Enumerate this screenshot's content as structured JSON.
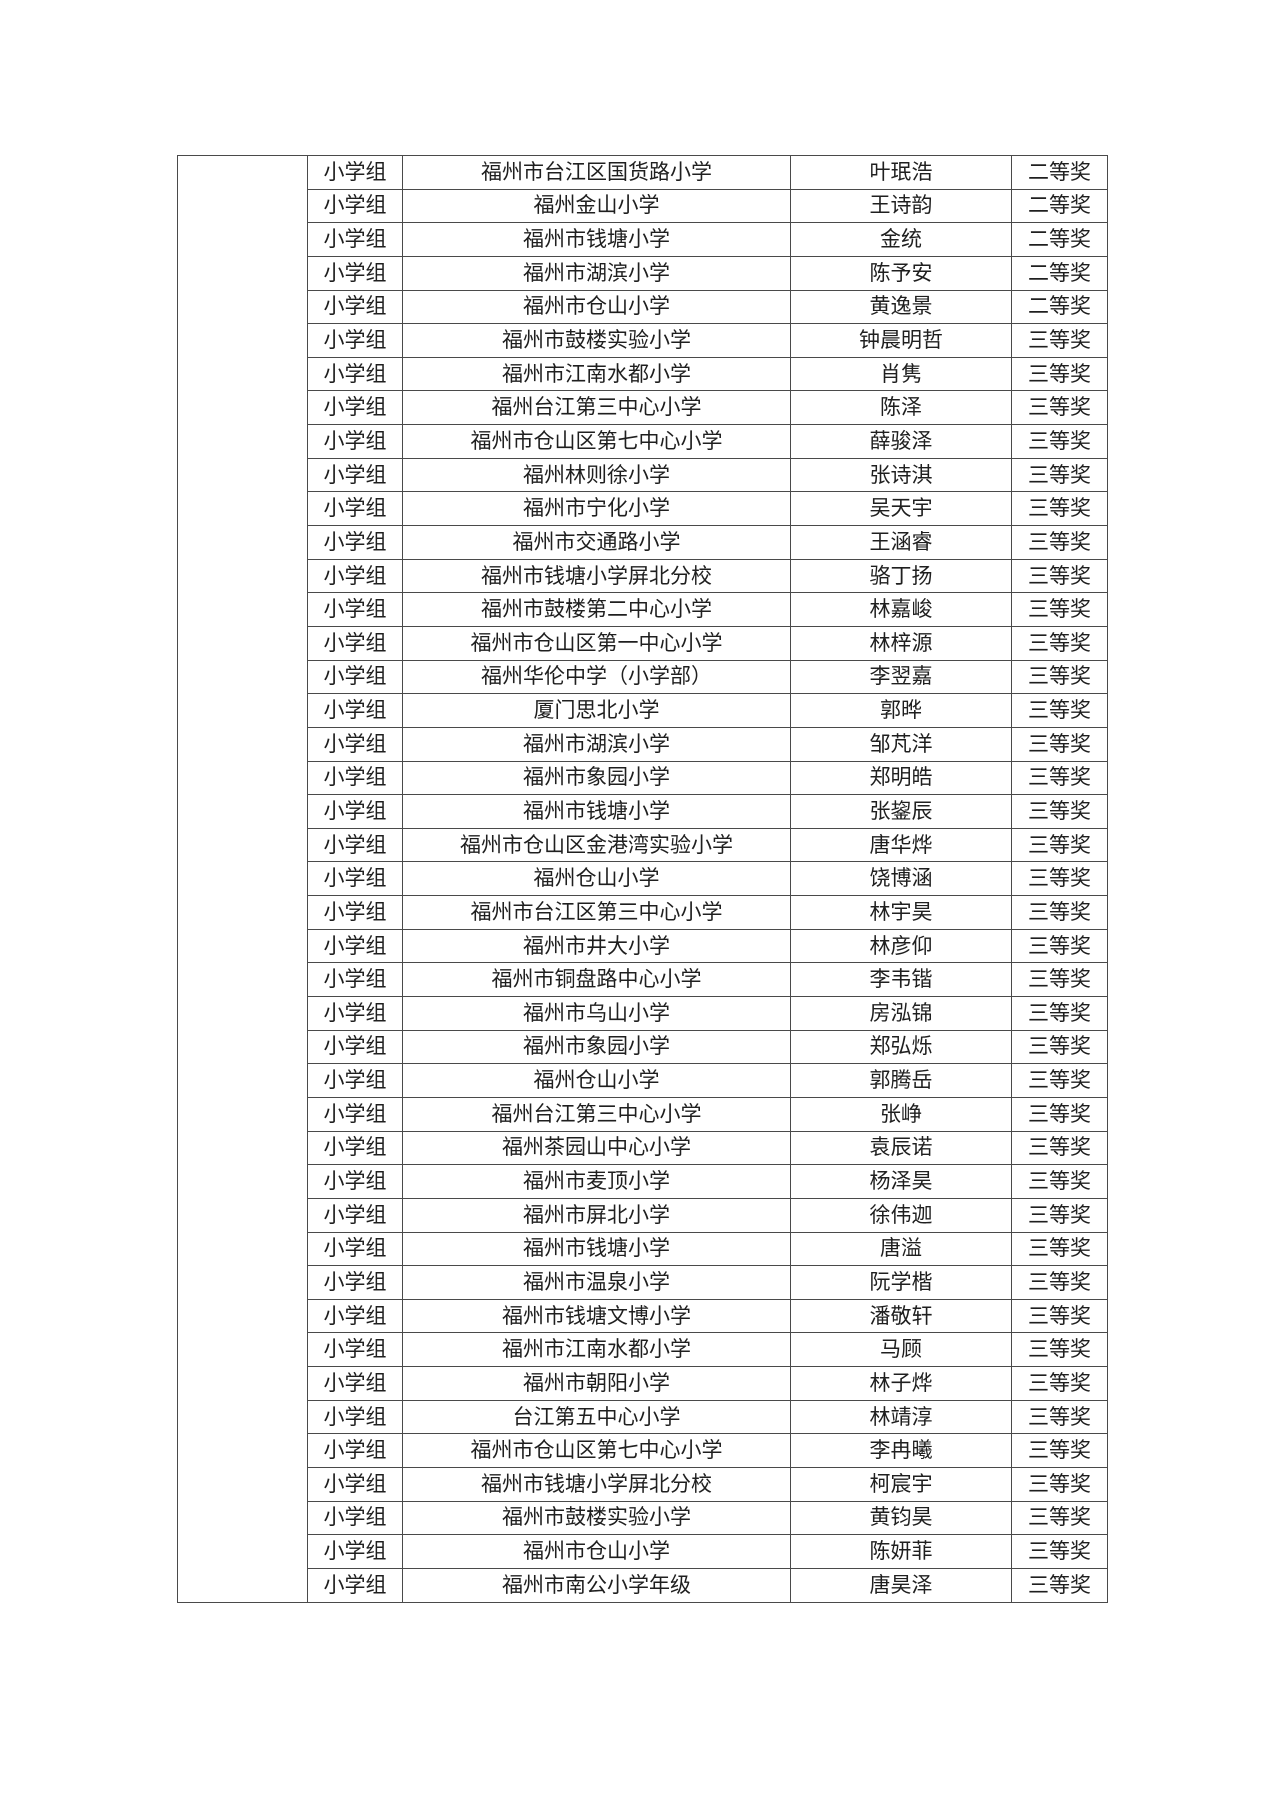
{
  "page": {
    "background_color": "#ffffff",
    "text_color": "#1f1f1f",
    "border_color": "#4a4a4a"
  },
  "table": {
    "merged_left_cell": "",
    "rows": [
      {
        "group": "小学组",
        "school": "福州市台江区国货路小学",
        "name": "叶珉浩",
        "award": "二等奖"
      },
      {
        "group": "小学组",
        "school": "福州金山小学",
        "name": "王诗韵",
        "award": "二等奖"
      },
      {
        "group": "小学组",
        "school": "福州市钱塘小学",
        "name": "金统",
        "award": "二等奖"
      },
      {
        "group": "小学组",
        "school": "福州市湖滨小学",
        "name": "陈予安",
        "award": "二等奖"
      },
      {
        "group": "小学组",
        "school": "福州市仓山小学",
        "name": "黄逸景",
        "award": "二等奖"
      },
      {
        "group": "小学组",
        "school": "福州市鼓楼实验小学",
        "name": "钟晨明哲",
        "award": "三等奖"
      },
      {
        "group": "小学组",
        "school": "福州市江南水都小学",
        "name": "肖隽",
        "award": "三等奖"
      },
      {
        "group": "小学组",
        "school": "福州台江第三中心小学",
        "name": "陈泽",
        "award": "三等奖"
      },
      {
        "group": "小学组",
        "school": "福州市仓山区第七中心小学",
        "name": "薛骏泽",
        "award": "三等奖"
      },
      {
        "group": "小学组",
        "school": "福州林则徐小学",
        "name": "张诗淇",
        "award": "三等奖"
      },
      {
        "group": "小学组",
        "school": "福州市宁化小学",
        "name": "吴天宇",
        "award": "三等奖"
      },
      {
        "group": "小学组",
        "school": "福州市交通路小学",
        "name": "王涵睿",
        "award": "三等奖"
      },
      {
        "group": "小学组",
        "school": "福州市钱塘小学屏北分校",
        "name": "骆丁扬",
        "award": "三等奖"
      },
      {
        "group": "小学组",
        "school": "福州市鼓楼第二中心小学",
        "name": "林嘉峻",
        "award": "三等奖"
      },
      {
        "group": "小学组",
        "school": "福州市仓山区第一中心小学",
        "name": "林梓源",
        "award": "三等奖"
      },
      {
        "group": "小学组",
        "school": "福州华伦中学（小学部）",
        "name": "李翌嘉",
        "award": "三等奖"
      },
      {
        "group": "小学组",
        "school": "厦门思北小学",
        "name": "郭晔",
        "award": "三等奖"
      },
      {
        "group": "小学组",
        "school": "福州市湖滨小学",
        "name": "邹芃洋",
        "award": "三等奖"
      },
      {
        "group": "小学组",
        "school": "福州市象园小学",
        "name": "郑明皓",
        "award": "三等奖"
      },
      {
        "group": "小学组",
        "school": "福州市钱塘小学",
        "name": "张鋆辰",
        "award": "三等奖"
      },
      {
        "group": "小学组",
        "school": "福州市仓山区金港湾实验小学",
        "name": "唐华烨",
        "award": "三等奖"
      },
      {
        "group": "小学组",
        "school": "福州仓山小学",
        "name": "饶博涵",
        "award": "三等奖"
      },
      {
        "group": "小学组",
        "school": "福州市台江区第三中心小学",
        "name": "林宇昊",
        "award": "三等奖"
      },
      {
        "group": "小学组",
        "school": "福州市井大小学",
        "name": "林彦仰",
        "award": "三等奖"
      },
      {
        "group": "小学组",
        "school": "福州市铜盘路中心小学",
        "name": "李韦锴",
        "award": "三等奖"
      },
      {
        "group": "小学组",
        "school": "福州市乌山小学",
        "name": "房泓锦",
        "award": "三等奖"
      },
      {
        "group": "小学组",
        "school": "福州市象园小学",
        "name": "郑弘烁",
        "award": "三等奖"
      },
      {
        "group": "小学组",
        "school": "福州仓山小学",
        "name": "郭腾岳",
        "award": "三等奖"
      },
      {
        "group": "小学组",
        "school": "福州台江第三中心小学",
        "name": "张峥",
        "award": "三等奖"
      },
      {
        "group": "小学组",
        "school": "福州茶园山中心小学",
        "name": "袁辰诺",
        "award": "三等奖"
      },
      {
        "group": "小学组",
        "school": "福州市麦顶小学",
        "name": "杨泽昊",
        "award": "三等奖"
      },
      {
        "group": "小学组",
        "school": "福州市屏北小学",
        "name": "徐伟迦",
        "award": "三等奖"
      },
      {
        "group": "小学组",
        "school": "福州市钱塘小学",
        "name": "唐溢",
        "award": "三等奖"
      },
      {
        "group": "小学组",
        "school": "福州市温泉小学",
        "name": "阮学楷",
        "award": "三等奖"
      },
      {
        "group": "小学组",
        "school": "福州市钱塘文博小学",
        "name": "潘敬轩",
        "award": "三等奖"
      },
      {
        "group": "小学组",
        "school": "福州市江南水都小学",
        "name": "马顾",
        "award": "三等奖"
      },
      {
        "group": "小学组",
        "school": "福州市朝阳小学",
        "name": "林子烨",
        "award": "三等奖"
      },
      {
        "group": "小学组",
        "school": "台江第五中心小学",
        "name": "林靖淳",
        "award": "三等奖"
      },
      {
        "group": "小学组",
        "school": "福州市仓山区第七中心小学",
        "name": "李冉曦",
        "award": "三等奖"
      },
      {
        "group": "小学组",
        "school": "福州市钱塘小学屏北分校",
        "name": "柯宸宇",
        "award": "三等奖"
      },
      {
        "group": "小学组",
        "school": "福州市鼓楼实验小学",
        "name": "黄钧昊",
        "award": "三等奖"
      },
      {
        "group": "小学组",
        "school": "福州市仓山小学",
        "name": "陈妍菲",
        "award": "三等奖"
      },
      {
        "group": "小学组",
        "school": "福州市南公小学年级",
        "name": "唐昊泽",
        "award": "三等奖"
      }
    ]
  }
}
